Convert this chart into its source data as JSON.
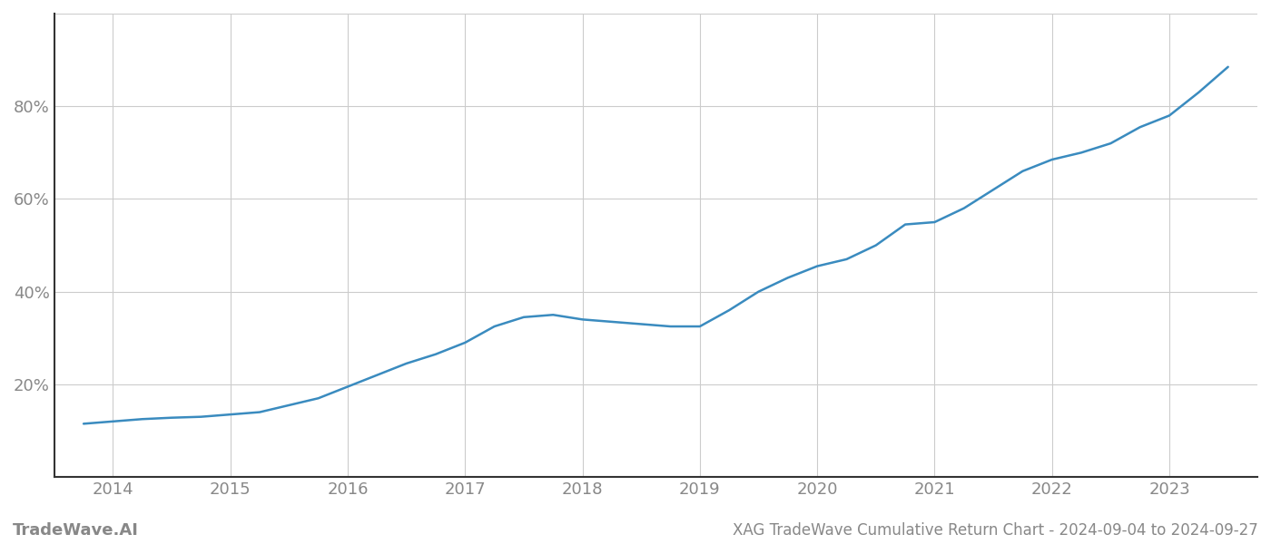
{
  "title": "XAG TradeWave Cumulative Return Chart - 2024-09-04 to 2024-09-27",
  "watermark": "TradeWave.AI",
  "line_color": "#3a8bbf",
  "line_width": 1.8,
  "background_color": "#ffffff",
  "grid_color": "#cccccc",
  "x_years": [
    2014,
    2015,
    2016,
    2017,
    2018,
    2019,
    2020,
    2021,
    2022,
    2023
  ],
  "x_values": [
    2013.75,
    2014.0,
    2014.25,
    2014.5,
    2014.75,
    2015.0,
    2015.25,
    2015.5,
    2015.75,
    2016.0,
    2016.25,
    2016.5,
    2016.75,
    2017.0,
    2017.25,
    2017.5,
    2017.75,
    2018.0,
    2018.25,
    2018.5,
    2018.75,
    2019.0,
    2019.25,
    2019.5,
    2019.75,
    2020.0,
    2020.25,
    2020.5,
    2020.75,
    2021.0,
    2021.25,
    2021.5,
    2021.75,
    2022.0,
    2022.25,
    2022.5,
    2022.75,
    2023.0,
    2023.25,
    2023.5
  ],
  "y_values": [
    11.5,
    12.0,
    12.5,
    12.8,
    13.0,
    13.5,
    14.0,
    15.5,
    17.0,
    19.5,
    22.0,
    24.5,
    26.5,
    29.0,
    32.5,
    34.5,
    35.0,
    34.0,
    33.5,
    33.0,
    32.5,
    32.5,
    36.0,
    40.0,
    43.0,
    45.5,
    47.0,
    50.0,
    54.5,
    55.0,
    58.0,
    62.0,
    66.0,
    68.5,
    70.0,
    72.0,
    75.5,
    78.0,
    83.0,
    88.5
  ],
  "ylim": [
    0,
    100
  ],
  "xlim": [
    2013.5,
    2023.75
  ],
  "yticks": [
    20,
    40,
    60,
    80
  ],
  "tick_label_color": "#888888",
  "tick_fontsize": 13,
  "title_fontsize": 12,
  "watermark_fontsize": 13,
  "spine_color": "#333333",
  "grid_yticks_all": [
    0,
    20,
    40,
    60,
    80,
    100
  ]
}
